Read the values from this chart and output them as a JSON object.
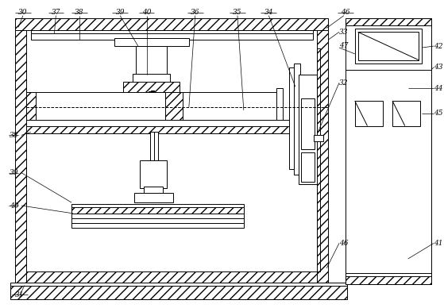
{
  "fig_width": 5.59,
  "fig_height": 3.88,
  "dpi": 100,
  "bg_color": "#ffffff",
  "lc": "#000000"
}
